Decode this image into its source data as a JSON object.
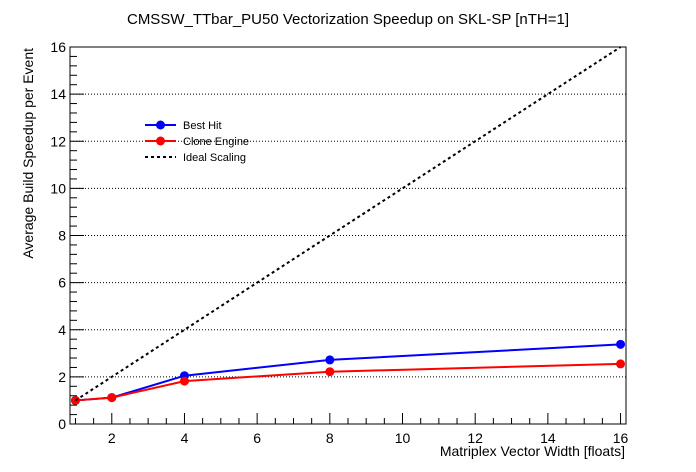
{
  "chart_data": {
    "type": "line",
    "title": "CMSSW_TTbar_PU50 Vectorization Speedup on SKL-SP [nTH=1]",
    "xlabel": "Matriplex Vector Width [floats]",
    "ylabel": "Average Build Speedup per Event",
    "xlim": [
      0.85,
      16.15
    ],
    "ylim": [
      0,
      16
    ],
    "x_ticks": [
      2,
      4,
      6,
      8,
      10,
      12,
      14,
      16
    ],
    "y_ticks": [
      0,
      2,
      4,
      6,
      8,
      10,
      12,
      14,
      16
    ],
    "grid": "horizontal-dotted",
    "legend_position": "upper-left",
    "series": [
      {
        "name": "Best Hit",
        "color": "#0000ff",
        "marker": "circle",
        "x": [
          1,
          2,
          4,
          8,
          16
        ],
        "y": [
          1.0,
          1.12,
          2.05,
          2.72,
          3.38
        ]
      },
      {
        "name": "Clone Engine",
        "color": "#ff0000",
        "marker": "circle",
        "x": [
          1,
          2,
          4,
          8,
          16
        ],
        "y": [
          1.0,
          1.12,
          1.82,
          2.22,
          2.55
        ]
      },
      {
        "name": "Ideal Scaling",
        "color": "#000000",
        "marker": "none",
        "dashed": true,
        "x": [
          1,
          16
        ],
        "y": [
          1,
          16
        ]
      }
    ]
  }
}
